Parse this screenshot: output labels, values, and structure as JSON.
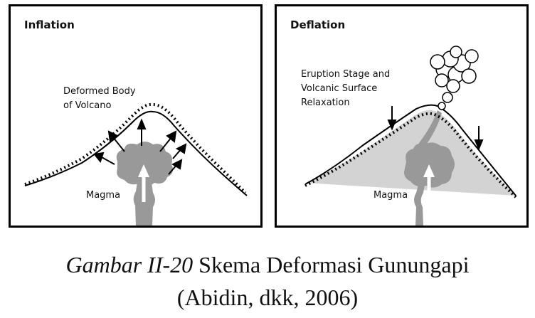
{
  "panels": {
    "left": {
      "title": "Inflation",
      "labels": {
        "body": "Deformed Body\nof Volcano",
        "magma": "Magma"
      }
    },
    "right": {
      "title": "Deflation",
      "labels": {
        "stage": "Eruption Stage and\nVolcanic Surface\nRelaxation",
        "magma": "Magma"
      }
    }
  },
  "caption": {
    "figure_ref": "Gambar II-20",
    "title": " Skema Deformasi Gunungapi",
    "source": "(Abidin, dkk, 2006)"
  },
  "colors": {
    "magma": "#999999",
    "body_fill": "#d3d3d3",
    "line": "#000000"
  }
}
